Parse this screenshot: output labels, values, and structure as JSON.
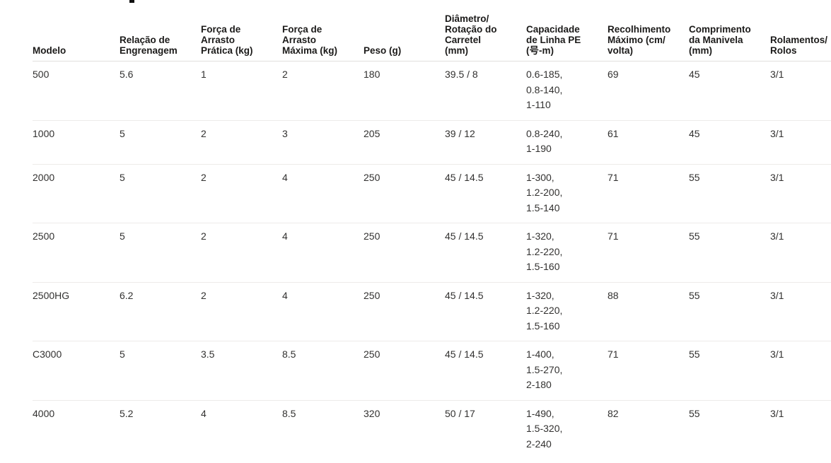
{
  "fragment": {
    "note": "cropped-title-remnant"
  },
  "table": {
    "columns": [
      {
        "key": "model",
        "lines": [
          "Modelo"
        ]
      },
      {
        "key": "gear_ratio",
        "lines": [
          "Relação de",
          "Engrenagem"
        ]
      },
      {
        "key": "drag_practical",
        "lines": [
          "Força de",
          "Arrasto",
          "Prática (kg)"
        ]
      },
      {
        "key": "drag_max",
        "lines": [
          "Força de",
          "Arrasto",
          "Máxima (kg)"
        ]
      },
      {
        "key": "weight",
        "lines": [
          "Peso (g)"
        ]
      },
      {
        "key": "spool",
        "lines": [
          "Diâmetro/",
          "Rotação do",
          "Carretel",
          "(mm)"
        ]
      },
      {
        "key": "capacity",
        "lines": [
          "Capacidade",
          "de Linha PE",
          "(号-m)"
        ]
      },
      {
        "key": "retrieve",
        "lines": [
          "Recolhimento",
          "Máximo (cm/",
          "volta)"
        ]
      },
      {
        "key": "handle",
        "lines": [
          "Comprimento",
          "da Manivela",
          "(mm)"
        ]
      },
      {
        "key": "bearings",
        "lines": [
          "Rolamentos/",
          "Rolos"
        ]
      }
    ],
    "rows": [
      {
        "model": "500",
        "gear_ratio": "5.6",
        "drag_practical": "1",
        "drag_max": "2",
        "weight": "180",
        "spool": "39.5 / 8",
        "capacity": [
          "0.6-185,",
          "0.8-140,",
          "1-110"
        ],
        "retrieve": "69",
        "handle": "45",
        "bearings": "3/1"
      },
      {
        "model": "1000",
        "gear_ratio": "5",
        "drag_practical": "2",
        "drag_max": "3",
        "weight": "205",
        "spool": "39 / 12",
        "capacity": [
          "0.8-240,",
          "1-190"
        ],
        "retrieve": "61",
        "handle": "45",
        "bearings": "3/1"
      },
      {
        "model": "2000",
        "gear_ratio": "5",
        "drag_practical": "2",
        "drag_max": "4",
        "weight": "250",
        "spool": "45 / 14.5",
        "capacity": [
          "1-300,",
          "1.2-200,",
          "1.5-140"
        ],
        "retrieve": "71",
        "handle": "55",
        "bearings": "3/1"
      },
      {
        "model": "2500",
        "gear_ratio": "5",
        "drag_practical": "2",
        "drag_max": "4",
        "weight": "250",
        "spool": "45 / 14.5",
        "capacity": [
          "1-320,",
          "1.2-220,",
          "1.5-160"
        ],
        "retrieve": "71",
        "handle": "55",
        "bearings": "3/1"
      },
      {
        "model": "2500HG",
        "gear_ratio": "6.2",
        "drag_practical": "2",
        "drag_max": "4",
        "weight": "250",
        "spool": "45 / 14.5",
        "capacity": [
          "1-320,",
          "1.2-220,",
          "1.5-160"
        ],
        "retrieve": "88",
        "handle": "55",
        "bearings": "3/1"
      },
      {
        "model": "C3000",
        "gear_ratio": "5",
        "drag_practical": "3.5",
        "drag_max": "8.5",
        "weight": "250",
        "spool": "45 / 14.5",
        "capacity": [
          "1-400,",
          "1.5-270,",
          "2-180"
        ],
        "retrieve": "71",
        "handle": "55",
        "bearings": "3/1"
      },
      {
        "model": "4000",
        "gear_ratio": "5.2",
        "drag_practical": "4",
        "drag_max": "8.5",
        "weight": "320",
        "spool": "50 / 17",
        "capacity": [
          "1-490,",
          "1.5-320,",
          "2-240"
        ],
        "retrieve": "82",
        "handle": "55",
        "bearings": "3/1"
      }
    ]
  }
}
